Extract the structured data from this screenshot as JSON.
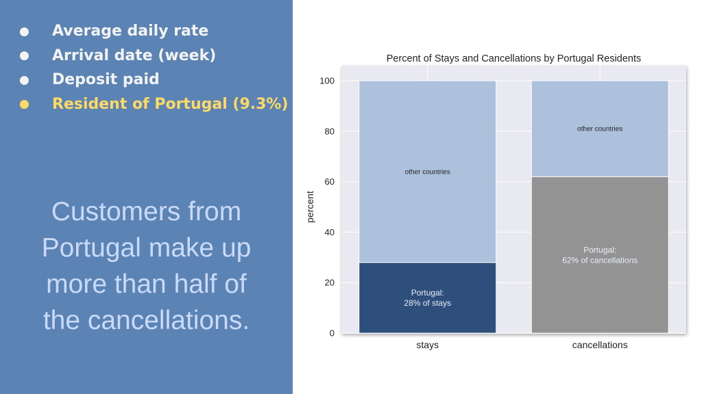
{
  "slide": {
    "bullets": [
      {
        "text": "Average daily rate",
        "highlight": false
      },
      {
        "text": "Arrival date (week)",
        "highlight": false
      },
      {
        "text": "Deposit paid",
        "highlight": false
      },
      {
        "text": "Resident of Portugal (9.3%)",
        "highlight": true
      }
    ],
    "bullet_symbol": "●",
    "tagline_lines": [
      "Customers from",
      "Portugal make up",
      "more than half of",
      "the cancellations."
    ],
    "colors": {
      "panel": "#5b84b4",
      "bullet_text": "#f3f3f3",
      "highlight_text": "#ffd966",
      "tagline_text": "#c9daf8"
    }
  },
  "chart_data": {
    "type": "bar",
    "stacked": true,
    "title": "Percent of Stays and Cancellations by Portugal Residents",
    "xlabel": "",
    "ylabel": "percent",
    "categories": [
      "stays",
      "cancellations"
    ],
    "ylim": [
      0,
      100
    ],
    "yticks": [
      0,
      20,
      40,
      60,
      80,
      100
    ],
    "grid": true,
    "legend": "none",
    "series": [
      {
        "values": [
          28,
          62
        ],
        "colors": [
          "#2e4f7b",
          "#939393"
        ],
        "labels": [
          [
            "Portugal:",
            "28% of stays"
          ],
          [
            "Portugal:",
            "62% of cancellations"
          ]
        ],
        "label_color": "#e8eef6"
      },
      {
        "values": [
          72,
          38
        ],
        "colors": [
          "#adc1dd",
          "#adc1dd"
        ],
        "labels": [
          [
            "other countries"
          ],
          [
            "other countries"
          ]
        ],
        "label_color": "#222222"
      }
    ],
    "background": "#e9e9f1"
  }
}
